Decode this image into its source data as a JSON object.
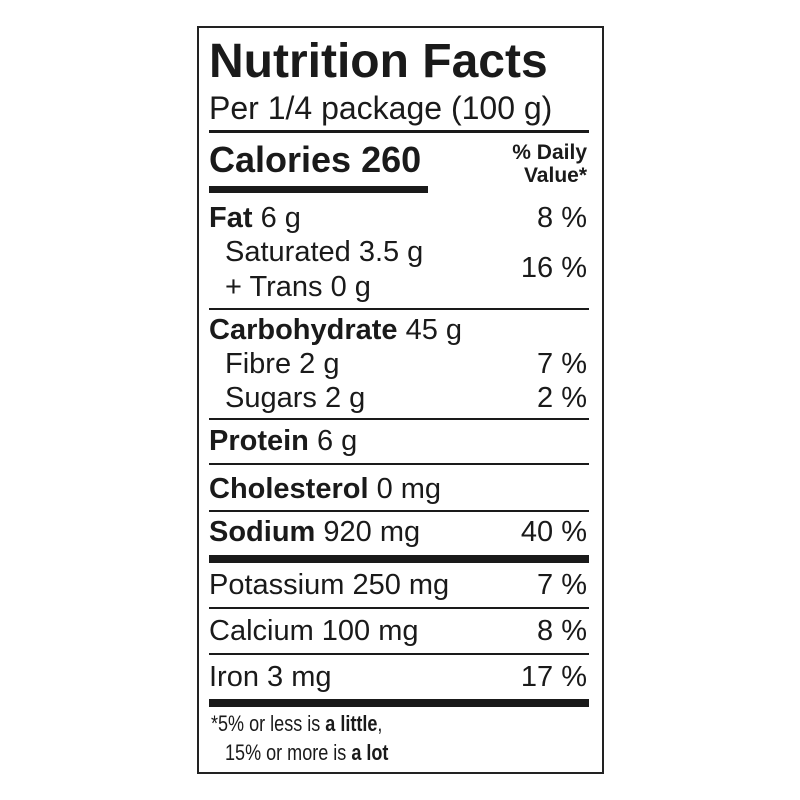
{
  "title": "Nutrition Facts",
  "serving": "Per 1/4 package (100 g)",
  "calories": {
    "label": "Calories",
    "value": "260"
  },
  "daily_value_header": {
    "line1": "% Daily",
    "line2": "Value*"
  },
  "nutrients": {
    "fat": {
      "label": "Fat",
      "amount": "6 g",
      "dv": "8 %"
    },
    "saturated": {
      "label": "Saturated 3.5 g"
    },
    "trans": {
      "label": "+ Trans 0 g"
    },
    "sat_trans_dv": "16 %",
    "carbohydrate": {
      "label": "Carbohydrate",
      "amount": "45 g"
    },
    "fibre": {
      "label": "Fibre 2 g",
      "dv": "7 %"
    },
    "sugars": {
      "label": "Sugars 2 g",
      "dv": "2 %"
    },
    "protein": {
      "label": "Protein",
      "amount": "6 g"
    },
    "cholesterol": {
      "label": "Cholesterol",
      "amount": "0 mg"
    },
    "sodium": {
      "label": "Sodium",
      "amount": "920 mg",
      "dv": "40 %"
    },
    "potassium": {
      "label": "Potassium 250 mg",
      "dv": "7 %"
    },
    "calcium": {
      "label": "Calcium 100 mg",
      "dv": "8 %"
    },
    "iron": {
      "label": "Iron 3 mg",
      "dv": "17 %"
    }
  },
  "footnote": {
    "line1_prefix": "*5% or less is ",
    "line1_bold": "a little",
    "line1_suffix": ",",
    "line2_prefix": "15% or more is ",
    "line2_bold": "a lot"
  }
}
